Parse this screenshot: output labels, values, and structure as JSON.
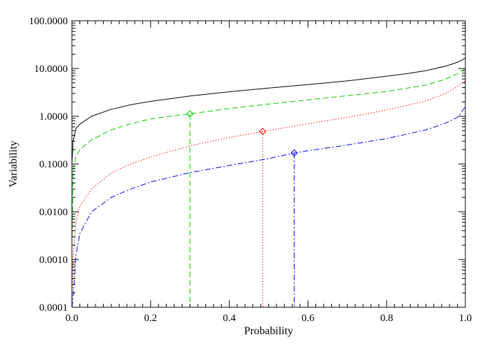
{
  "chart_data": {
    "type": "line",
    "title": "",
    "xlabel": "Probability",
    "ylabel": "Variability",
    "xlim": [
      0.0,
      1.0
    ],
    "ylim": [
      0.0001,
      100.0
    ],
    "yscale": "log",
    "grid": false,
    "legend": "none",
    "x_ticks": [
      {
        "value": 0.0,
        "label": "0.0"
      },
      {
        "value": 0.2,
        "label": "0.2"
      },
      {
        "value": 0.4,
        "label": "0.4"
      },
      {
        "value": 0.6,
        "label": "0.6"
      },
      {
        "value": 0.8,
        "label": "0.8"
      },
      {
        "value": 1.0,
        "label": "1.0"
      }
    ],
    "y_ticks": [
      {
        "value": 0.0001,
        "label": "0.0001"
      },
      {
        "value": 0.001,
        "label": "0.0010"
      },
      {
        "value": 0.01,
        "label": "0.0100"
      },
      {
        "value": 0.1,
        "label": "0.1000"
      },
      {
        "value": 1.0,
        "label": "1.0000"
      },
      {
        "value": 10.0,
        "label": "10.0000"
      },
      {
        "value": 100.0,
        "label": "100.0000"
      }
    ],
    "series": [
      {
        "color": "#000000",
        "style": "solid",
        "x": [
          0.0,
          0.003,
          0.01,
          0.02,
          0.05,
          0.1,
          0.15,
          0.2,
          0.3,
          0.4,
          0.5,
          0.6,
          0.7,
          0.8,
          0.85,
          0.9,
          0.95,
          0.98,
          1.0
        ],
        "y": [
          0.1,
          0.3,
          0.55,
          0.68,
          1.0,
          1.4,
          1.75,
          2.05,
          2.65,
          3.25,
          3.9,
          4.6,
          5.5,
          6.9,
          7.8,
          9.0,
          11.2,
          13.5,
          16.5
        ],
        "marker": null
      },
      {
        "color": "#00cc00",
        "style": "dashed",
        "x": [
          0.0,
          0.003,
          0.01,
          0.02,
          0.05,
          0.1,
          0.15,
          0.2,
          0.25,
          0.3,
          0.4,
          0.5,
          0.6,
          0.7,
          0.8,
          0.9,
          0.95,
          0.98,
          1.0
        ],
        "y": [
          0.002,
          0.07,
          0.14,
          0.2,
          0.32,
          0.52,
          0.7,
          0.88,
          1.0,
          1.12,
          1.45,
          1.8,
          2.2,
          2.7,
          3.3,
          4.5,
          6.0,
          7.8,
          10.0
        ],
        "marker": {
          "x": 0.3,
          "y": 1.12
        }
      },
      {
        "color": "#ff0000",
        "style": "dotted",
        "x": [
          0.0,
          0.003,
          0.01,
          0.02,
          0.05,
          0.1,
          0.15,
          0.2,
          0.3,
          0.4,
          0.485,
          0.6,
          0.7,
          0.8,
          0.9,
          0.95,
          0.98,
          1.0
        ],
        "y": [
          0.0001,
          0.001,
          0.006,
          0.013,
          0.03,
          0.065,
          0.1,
          0.14,
          0.24,
          0.36,
          0.48,
          0.7,
          0.95,
          1.35,
          2.1,
          3.0,
          4.2,
          5.6
        ],
        "marker": {
          "x": 0.485,
          "y": 0.48
        }
      },
      {
        "color": "#0000ff",
        "style": "dashdot",
        "x": [
          0.0,
          0.003,
          0.01,
          0.02,
          0.05,
          0.1,
          0.15,
          0.2,
          0.3,
          0.4,
          0.5,
          0.565,
          0.6,
          0.7,
          0.8,
          0.9,
          0.95,
          0.98,
          1.0
        ],
        "y": [
          0.0001,
          0.00015,
          0.0012,
          0.0035,
          0.01,
          0.02,
          0.03,
          0.042,
          0.066,
          0.093,
          0.13,
          0.17,
          0.19,
          0.25,
          0.34,
          0.52,
          0.72,
          0.95,
          1.6
        ],
        "marker": {
          "x": 0.565,
          "y": 0.17
        }
      }
    ]
  }
}
